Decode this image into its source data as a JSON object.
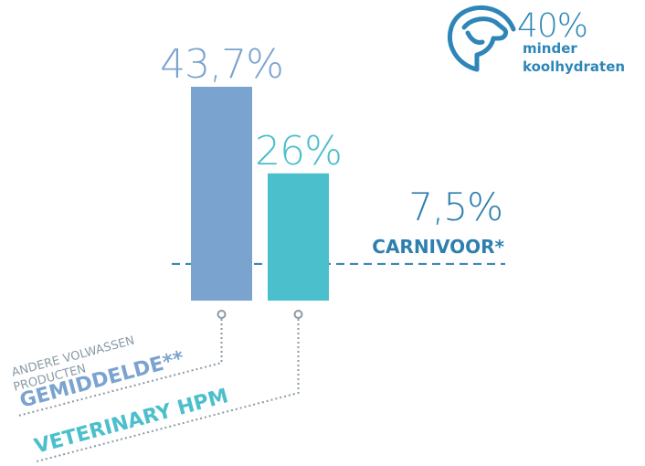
{
  "chart_data": {
    "type": "bar",
    "categories": [
      "GEMIDDELDE**",
      "VETERINARY HPM"
    ],
    "category_notes": [
      [
        "ANDERE VOLWASSEN",
        "PRODUCTEN"
      ],
      null
    ],
    "values": [
      43.7,
      26
    ],
    "value_labels": [
      "43,7%",
      "26%"
    ],
    "colors": [
      "#7aa3cf",
      "#4bbfcc"
    ],
    "ylim": [
      0,
      45
    ],
    "reference_line": {
      "value": 7.5,
      "value_label": "7,5%",
      "label": "CARNIVOOR*",
      "color": "#2e7fae"
    }
  },
  "badge": {
    "value_label": "40%",
    "lines": [
      "minder",
      "koolhydraten"
    ]
  }
}
